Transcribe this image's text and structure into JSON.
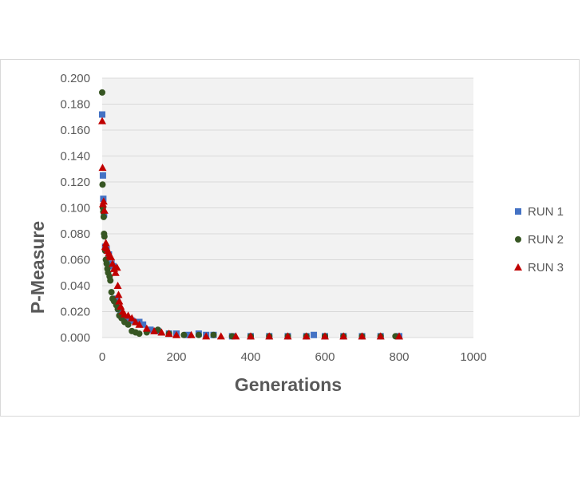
{
  "chart_data": {
    "type": "scatter",
    "title": "",
    "xlabel": "Generations",
    "ylabel": "P-Measure",
    "xlim": [
      0,
      1000
    ],
    "ylim": [
      0,
      0.2
    ],
    "x_ticks": [
      0,
      200,
      400,
      600,
      800,
      1000
    ],
    "y_ticks": [
      0,
      0.02,
      0.04,
      0.06,
      0.08,
      0.1,
      0.12,
      0.14,
      0.16,
      0.18,
      0.2
    ],
    "x_tick_labels": [
      "0",
      "200",
      "400",
      "600",
      "800",
      "1000"
    ],
    "y_tick_labels": [
      "0.000",
      "0.020",
      "0.040",
      "0.060",
      "0.080",
      "0.100",
      "0.120",
      "0.140",
      "0.160",
      "0.180",
      "0.200"
    ],
    "grid": "horizontal",
    "legend_position": "right",
    "series": [
      {
        "name": "RUN 1",
        "marker": "square",
        "color": "#4472c4",
        "points": [
          [
            0,
            0.172
          ],
          [
            2,
            0.125
          ],
          [
            3,
            0.107
          ],
          [
            5,
            0.095
          ],
          [
            8,
            0.07
          ],
          [
            12,
            0.068
          ],
          [
            18,
            0.064
          ],
          [
            25,
            0.057
          ],
          [
            30,
            0.055
          ],
          [
            40,
            0.03
          ],
          [
            45,
            0.022
          ],
          [
            50,
            0.018
          ],
          [
            60,
            0.015
          ],
          [
            70,
            0.014
          ],
          [
            80,
            0.013
          ],
          [
            100,
            0.012
          ],
          [
            110,
            0.01
          ],
          [
            130,
            0.006
          ],
          [
            150,
            0.005
          ],
          [
            180,
            0.003
          ],
          [
            200,
            0.003
          ],
          [
            230,
            0.002
          ],
          [
            260,
            0.003
          ],
          [
            280,
            0.002
          ],
          [
            300,
            0.002
          ],
          [
            350,
            0.001
          ],
          [
            400,
            0.001
          ],
          [
            450,
            0.001
          ],
          [
            500,
            0.001
          ],
          [
            550,
            0.001
          ],
          [
            570,
            0.002
          ],
          [
            600,
            0.001
          ],
          [
            650,
            0.001
          ],
          [
            700,
            0.001
          ],
          [
            750,
            0.001
          ],
          [
            800,
            0.001
          ]
        ]
      },
      {
        "name": "RUN 2",
        "marker": "circle",
        "color": "#375623",
        "points": [
          [
            0,
            0.189
          ],
          [
            1,
            0.118
          ],
          [
            2,
            0.1
          ],
          [
            3,
            0.097
          ],
          [
            4,
            0.093
          ],
          [
            5,
            0.08
          ],
          [
            6,
            0.078
          ],
          [
            8,
            0.067
          ],
          [
            10,
            0.06
          ],
          [
            12,
            0.057
          ],
          [
            14,
            0.053
          ],
          [
            16,
            0.05
          ],
          [
            20,
            0.047
          ],
          [
            22,
            0.044
          ],
          [
            25,
            0.035
          ],
          [
            28,
            0.03
          ],
          [
            32,
            0.028
          ],
          [
            38,
            0.025
          ],
          [
            42,
            0.022
          ],
          [
            46,
            0.017
          ],
          [
            52,
            0.015
          ],
          [
            60,
            0.012
          ],
          [
            70,
            0.01
          ],
          [
            80,
            0.005
          ],
          [
            90,
            0.004
          ],
          [
            100,
            0.003
          ],
          [
            120,
            0.004
          ],
          [
            150,
            0.006
          ],
          [
            180,
            0.003
          ],
          [
            220,
            0.002
          ],
          [
            260,
            0.002
          ],
          [
            300,
            0.002
          ],
          [
            350,
            0.001
          ],
          [
            400,
            0.001
          ],
          [
            450,
            0.001
          ],
          [
            500,
            0.001
          ],
          [
            550,
            0.001
          ],
          [
            600,
            0.001
          ],
          [
            650,
            0.001
          ],
          [
            700,
            0.001
          ],
          [
            750,
            0.001
          ],
          [
            790,
            0.001
          ]
        ]
      },
      {
        "name": "RUN 3",
        "marker": "triangle",
        "color": "#c00000",
        "points": [
          [
            0,
            0.167
          ],
          [
            1,
            0.131
          ],
          [
            2,
            0.103
          ],
          [
            4,
            0.105
          ],
          [
            6,
            0.098
          ],
          [
            8,
            0.07
          ],
          [
            10,
            0.073
          ],
          [
            12,
            0.069
          ],
          [
            15,
            0.067
          ],
          [
            18,
            0.065
          ],
          [
            20,
            0.063
          ],
          [
            24,
            0.062
          ],
          [
            28,
            0.057
          ],
          [
            32,
            0.053
          ],
          [
            36,
            0.05
          ],
          [
            40,
            0.054
          ],
          [
            42,
            0.04
          ],
          [
            44,
            0.033
          ],
          [
            46,
            0.028
          ],
          [
            50,
            0.024
          ],
          [
            55,
            0.02
          ],
          [
            60,
            0.018
          ],
          [
            70,
            0.017
          ],
          [
            80,
            0.015
          ],
          [
            90,
            0.012
          ],
          [
            100,
            0.01
          ],
          [
            120,
            0.007
          ],
          [
            140,
            0.005
          ],
          [
            160,
            0.004
          ],
          [
            180,
            0.003
          ],
          [
            200,
            0.002
          ],
          [
            240,
            0.002
          ],
          [
            280,
            0.001
          ],
          [
            320,
            0.001
          ],
          [
            360,
            0.001
          ],
          [
            400,
            0.001
          ],
          [
            450,
            0.001
          ],
          [
            500,
            0.001
          ],
          [
            550,
            0.001
          ],
          [
            600,
            0.001
          ],
          [
            650,
            0.001
          ],
          [
            700,
            0.001
          ],
          [
            750,
            0.001
          ],
          [
            800,
            0.001
          ]
        ]
      }
    ]
  }
}
